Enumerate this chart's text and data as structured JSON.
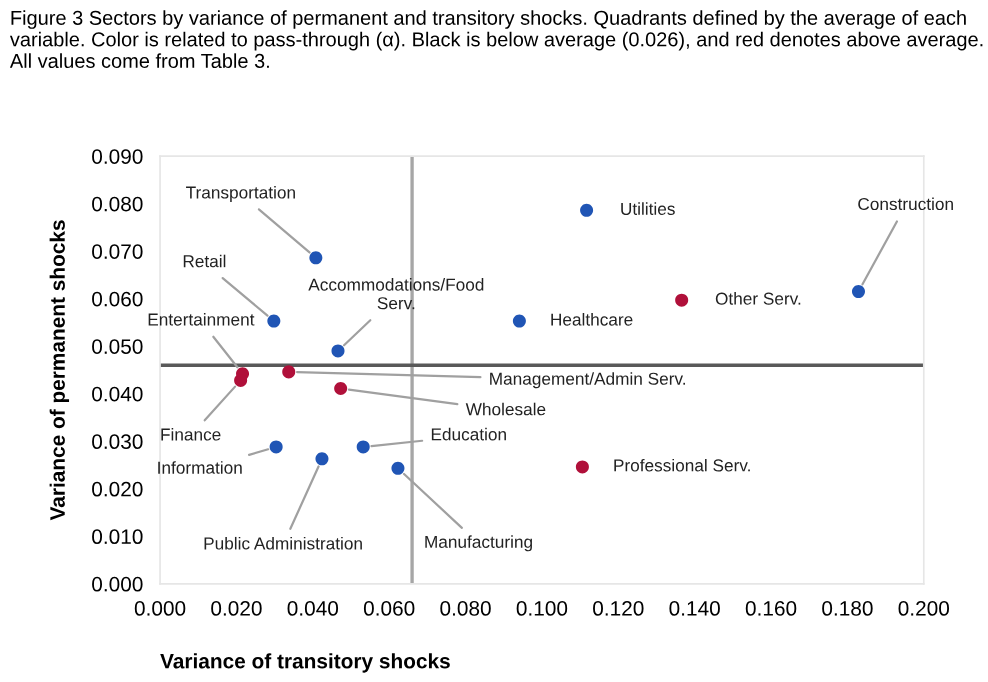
{
  "chart_data": {
    "type": "scatter",
    "title": "Figure 3 Sectors by variance of permanent and transitory shocks. Quadrants defined by the average of each variable. Color is related to pass-through (α). Black is below average (0.026), and red denotes above average. All values come from Table 3.",
    "xlabel": "Variance of transitory shocks",
    "ylabel": "Variance of permanent shocks",
    "marker": "circle",
    "grid": false,
    "legend": false,
    "series": [
      {
        "color": "#2055b5",
        "x": [
          0.0408,
          0.0298,
          0.0466,
          0.0304,
          0.0424,
          0.0532,
          0.0623,
          0.1117,
          0.0941,
          0.1829
        ],
        "values": [
          0.0686,
          0.0553,
          0.049,
          0.0288,
          0.0263,
          0.0288,
          0.0243,
          0.0786,
          0.0553,
          0.0615
        ]
      },
      {
        "color": "#b0103a",
        "x": [
          0.0216,
          0.0211,
          0.0337,
          0.0473,
          0.1366,
          0.1106
        ],
        "values": [
          0.0442,
          0.0428,
          0.0446,
          0.0411,
          0.0597,
          0.0246
        ]
      }
    ],
    "annotations": [
      {
        "text": "Transportation",
        "x": 0.0408,
        "y": 0.0686
      },
      {
        "text": "Retail",
        "x": 0.0298,
        "y": 0.0553
      },
      {
        "text": "Accommodations/Food\nServ.",
        "x": 0.0466,
        "y": 0.049
      },
      {
        "text": "Entertainment",
        "x": 0.0216,
        "y": 0.0442
      },
      {
        "text": "Finance",
        "x": 0.0211,
        "y": 0.0428
      },
      {
        "text": "Management/Admin Serv.",
        "x": 0.0337,
        "y": 0.0446
      },
      {
        "text": "Wholesale",
        "x": 0.0473,
        "y": 0.0411
      },
      {
        "text": "Information",
        "x": 0.0304,
        "y": 0.0288
      },
      {
        "text": "Public Administration",
        "x": 0.0424,
        "y": 0.0263
      },
      {
        "text": "Education",
        "x": 0.0532,
        "y": 0.0288
      },
      {
        "text": "Manufacturing",
        "x": 0.0623,
        "y": 0.0243
      },
      {
        "text": "Utilities",
        "x": 0.1117,
        "y": 0.0786
      },
      {
        "text": "Healthcare",
        "x": 0.0941,
        "y": 0.0553
      },
      {
        "text": "Other Serv.",
        "x": 0.1366,
        "y": 0.0597
      },
      {
        "text": "Construction",
        "x": 0.1829,
        "y": 0.0615
      },
      {
        "text": "Professional Serv.",
        "x": 0.1106,
        "y": 0.0246
      }
    ],
    "ref_lines": [
      {
        "axis": "x",
        "value": 0.066,
        "color": "#a6a6a6"
      },
      {
        "axis": "y",
        "value": 0.046,
        "color": "#595959"
      }
    ],
    "xlim": [
      0,
      0.2
    ],
    "ylim": [
      0,
      0.09
    ],
    "xticks": [
      {
        "value": 0,
        "label": "0.000"
      },
      {
        "value": 0.02,
        "label": "0.020"
      },
      {
        "value": 0.04,
        "label": "0.040"
      },
      {
        "value": 0.06,
        "label": "0.060"
      },
      {
        "value": 0.08,
        "label": "0.080"
      },
      {
        "value": 0.1,
        "label": "0.100"
      },
      {
        "value": 0.12,
        "label": "0.120"
      },
      {
        "value": 0.14,
        "label": "0.140"
      },
      {
        "value": 0.16,
        "label": "0.160"
      },
      {
        "value": 0.18,
        "label": "0.180"
      },
      {
        "value": 0.2,
        "label": "0.200"
      }
    ],
    "yticks": [
      {
        "value": 0,
        "label": "0.000"
      },
      {
        "value": 0.01,
        "label": "0.010"
      },
      {
        "value": 0.02,
        "label": "0.020"
      },
      {
        "value": 0.03,
        "label": "0.030"
      },
      {
        "value": 0.04,
        "label": "0.040"
      },
      {
        "value": 0.05,
        "label": "0.050"
      },
      {
        "value": 0.06,
        "label": "0.060"
      },
      {
        "value": 0.07,
        "label": "0.070"
      },
      {
        "value": 0.08,
        "label": "0.080"
      },
      {
        "value": 0.09,
        "label": "0.090"
      }
    ]
  }
}
